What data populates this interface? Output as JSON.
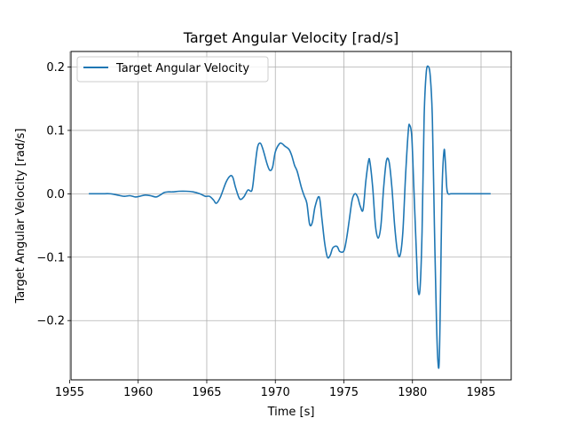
{
  "chart_data": {
    "type": "line",
    "title": "Target Angular Velocity [rad/s]",
    "xlabel": "Time [s]",
    "ylabel": "Target Angular Velocity [rad/s]",
    "xlim": [
      1955.1,
      1987.2
    ],
    "ylim": [
      -0.2935,
      0.2245
    ],
    "xticks": [
      1955,
      1960,
      1965,
      1970,
      1975,
      1980,
      1985
    ],
    "xtick_labels": [
      "1955",
      "1960",
      "1965",
      "1970",
      "1975",
      "1980",
      "1985"
    ],
    "yticks": [
      -0.2,
      -0.1,
      0.0,
      0.1,
      0.2
    ],
    "ytick_labels": [
      "−0.2",
      "−0.1",
      "0.0",
      "0.1",
      "0.2"
    ],
    "grid": true,
    "legend_position": "top-left",
    "color": "#1f77b4",
    "series": [
      {
        "name": "Target Angular Velocity",
        "x": [
          1956.4,
          1957.3,
          1958.0,
          1958.7,
          1959.0,
          1959.4,
          1959.8,
          1960.1,
          1960.5,
          1960.9,
          1961.3,
          1961.6,
          1961.9,
          1962.2,
          1962.5,
          1963.0,
          1963.5,
          1964.0,
          1964.5,
          1964.9,
          1965.2,
          1965.5,
          1965.7,
          1966.0,
          1966.4,
          1966.7,
          1966.9,
          1967.1,
          1967.4,
          1967.7,
          1968.0,
          1968.3,
          1968.5,
          1968.7,
          1968.9,
          1969.1,
          1969.4,
          1969.6,
          1969.8,
          1970.0,
          1970.3,
          1970.5,
          1970.7,
          1971.0,
          1971.2,
          1971.4,
          1971.6,
          1971.9,
          1972.1,
          1972.3,
          1972.5,
          1972.7,
          1972.9,
          1973.2,
          1973.4,
          1973.6,
          1973.8,
          1974.0,
          1974.2,
          1974.5,
          1974.7,
          1975.0,
          1975.2,
          1975.4,
          1975.6,
          1975.8,
          1976.0,
          1976.2,
          1976.4,
          1976.6,
          1976.8,
          1976.9,
          1977.1,
          1977.3,
          1977.5,
          1977.7,
          1977.9,
          1978.1,
          1978.3,
          1978.5,
          1978.7,
          1978.9,
          1979.1,
          1979.3,
          1979.5,
          1979.7,
          1979.8,
          1979.95,
          1980.1,
          1980.3,
          1980.4,
          1980.55,
          1980.7,
          1980.85,
          1981.0,
          1981.15,
          1981.3,
          1981.45,
          1981.6,
          1981.75,
          1981.85,
          1981.95,
          1982.05,
          1982.15,
          1982.3,
          1982.4,
          1982.5,
          1982.6,
          1982.8,
          1983.2,
          1984.0,
          1985.0,
          1985.7
        ],
        "y": [
          0.0,
          0.0,
          0.0,
          -0.003,
          -0.004,
          -0.003,
          -0.005,
          -0.004,
          -0.002,
          -0.003,
          -0.005,
          -0.002,
          0.002,
          0.003,
          0.003,
          0.004,
          0.004,
          0.003,
          0.0,
          -0.004,
          -0.004,
          -0.01,
          -0.015,
          -0.005,
          0.018,
          0.028,
          0.026,
          0.01,
          -0.008,
          -0.005,
          0.006,
          0.006,
          0.04,
          0.073,
          0.08,
          0.07,
          0.047,
          0.037,
          0.042,
          0.066,
          0.079,
          0.079,
          0.075,
          0.07,
          0.06,
          0.045,
          0.035,
          0.01,
          -0.003,
          -0.015,
          -0.048,
          -0.045,
          -0.02,
          -0.005,
          -0.04,
          -0.078,
          -0.1,
          -0.097,
          -0.085,
          -0.083,
          -0.091,
          -0.09,
          -0.07,
          -0.04,
          -0.01,
          0.0,
          -0.005,
          -0.02,
          -0.025,
          0.02,
          0.052,
          0.05,
          0.01,
          -0.05,
          -0.07,
          -0.05,
          0.01,
          0.052,
          0.05,
          0.01,
          -0.05,
          -0.09,
          -0.097,
          -0.06,
          0.03,
          0.1,
          0.108,
          0.09,
          0.01,
          -0.1,
          -0.15,
          -0.15,
          -0.06,
          0.12,
          0.19,
          0.201,
          0.185,
          0.12,
          -0.05,
          -0.2,
          -0.262,
          -0.265,
          -0.15,
          0.0,
          0.068,
          0.05,
          0.01,
          0.0,
          0.0,
          0.0,
          0.0,
          0.0,
          0.0
        ]
      }
    ]
  }
}
